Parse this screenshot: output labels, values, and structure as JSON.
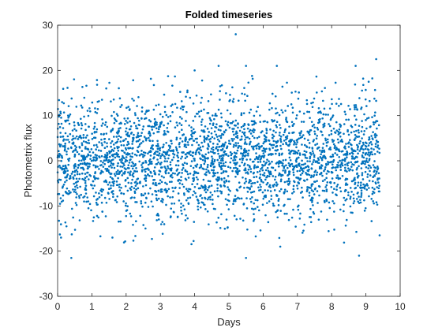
{
  "chart_data": {
    "type": "scatter",
    "title": "Folded timeseries",
    "xlabel": "Days",
    "ylabel": "Photometrix flux",
    "xlim": [
      0,
      10
    ],
    "ylim": [
      -30,
      30
    ],
    "xticks": [
      "0",
      "1",
      "2",
      "3",
      "4",
      "5",
      "6",
      "7",
      "8",
      "9",
      "10"
    ],
    "yticks": [
      "-30",
      "-20",
      "-10",
      "0",
      "10",
      "20",
      "30"
    ],
    "marker_color": "#0072BD",
    "grid": false,
    "box": true,
    "series": [
      {
        "point_count": 3000,
        "x_range": [
          0,
          9.4
        ],
        "y_mean": 0.5,
        "y_std": 6.5,
        "notable_points": [
          {
            "x": 5.2,
            "y": 28
          },
          {
            "x": 9.3,
            "y": 22.5
          },
          {
            "x": 5.5,
            "y": 21
          },
          {
            "x": 8.7,
            "y": 21
          },
          {
            "x": 4.7,
            "y": 21
          },
          {
            "x": 4.0,
            "y": 20
          },
          {
            "x": 6.4,
            "y": 21
          },
          {
            "x": 5.5,
            "y": -21.5
          },
          {
            "x": 0.4,
            "y": -21.5
          },
          {
            "x": 8.8,
            "y": -21
          },
          {
            "x": 6.5,
            "y": -19
          },
          {
            "x": 9.4,
            "y": -16.5
          },
          {
            "x": 0.1,
            "y": -17
          },
          {
            "x": 1.6,
            "y": -17
          }
        ]
      }
    ]
  }
}
